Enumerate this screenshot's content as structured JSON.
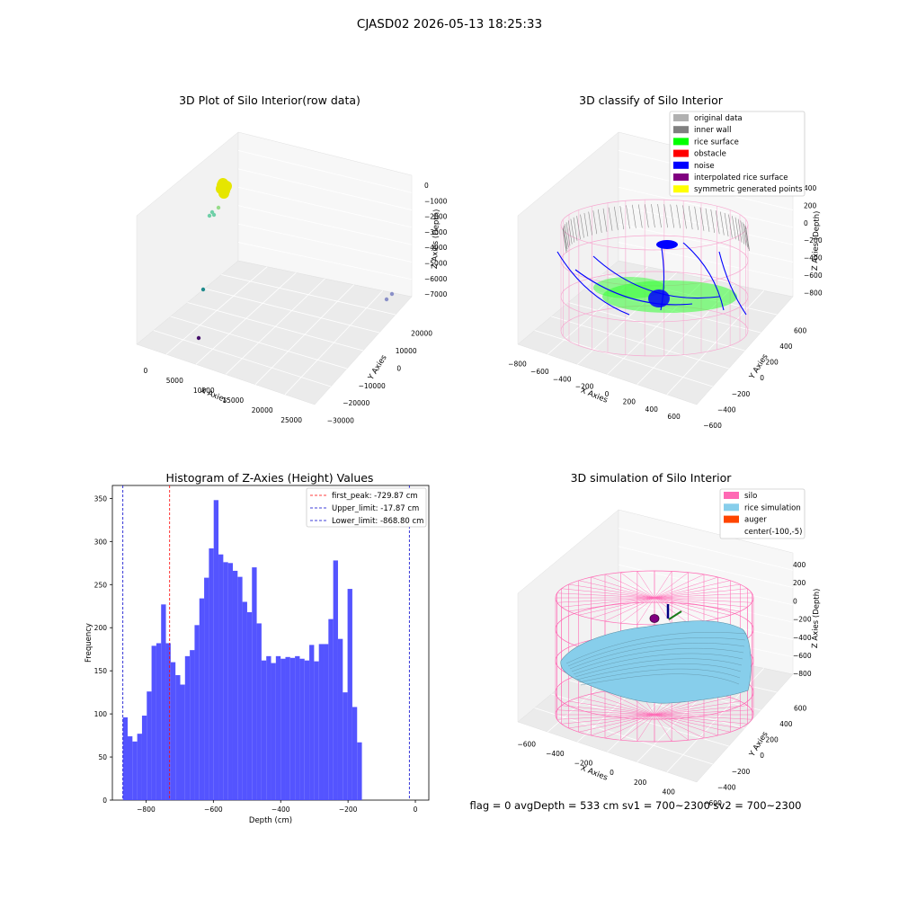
{
  "figure": {
    "suptitle": "CJASD02 2026-05-13 18:25:33",
    "footer": "flag = 0     avgDepth = 533 cm  sv1 = 700~2300  sv2 = 700~2300"
  },
  "panels": {
    "raw": {
      "title": "3D Plot of Silo Interior(row data)",
      "xlabel": "X Axies",
      "ylabel": "Y Axies",
      "zlabel": "Z Axies (Depth)",
      "xticks": [
        "0",
        "5000",
        "10000",
        "15000",
        "20000",
        "25000"
      ],
      "yticks": [
        "20000",
        "10000",
        "0",
        "−10000",
        "−20000",
        "−30000"
      ],
      "zticks": [
        "0",
        "−1000",
        "−2000",
        "−3000",
        "−4000",
        "−5000",
        "−6000",
        "−7000"
      ]
    },
    "classify": {
      "title": "3D classify of Silo Interior",
      "xlabel": "X Axies",
      "ylabel": "Y Axies",
      "zlabel": "Z Axies (Depth)",
      "xticks": [
        "−800",
        "−600",
        "−400",
        "−200",
        "0",
        "200",
        "400",
        "600"
      ],
      "yticks": [
        "600",
        "400",
        "200",
        "0",
        "−200",
        "−400",
        "−600"
      ],
      "zticks": [
        "400",
        "200",
        "0",
        "−200",
        "−400",
        "−600",
        "−800"
      ],
      "legend": [
        {
          "label": "original data",
          "color": "#b0b0b0"
        },
        {
          "label": "inner wall",
          "color": "#808080"
        },
        {
          "label": "rice surface",
          "color": "#00ff00"
        },
        {
          "label": "obstacle",
          "color": "#ff0000"
        },
        {
          "label": "noise",
          "color": "#0000ff"
        },
        {
          "label": "interpolated rice surface",
          "color": "#800080"
        },
        {
          "label": "symmetric generated points",
          "color": "#ffff00"
        }
      ]
    },
    "histogram": {
      "title": "Histogram of Z-Axies (Height) Values",
      "xlabel": "Depth (cm)",
      "ylabel": "Frequency"
    },
    "simulation": {
      "title": "3D simulation of Silo Interior",
      "xlabel": "X Axies",
      "ylabel": "Y Axies",
      "zlabel": "Z Axies (Depth)",
      "xticks": [
        "−600",
        "−400",
        "−200",
        "0",
        "200",
        "400"
      ],
      "yticks": [
        "600",
        "400",
        "200",
        "0",
        "−200",
        "−400",
        "−600"
      ],
      "zticks": [
        "400",
        "200",
        "0",
        "−200",
        "−400",
        "−600",
        "−800"
      ],
      "legend": [
        {
          "label": "silo",
          "color": "#ff69b4"
        },
        {
          "label": "rice simulation",
          "color": "#87ceeb"
        },
        {
          "label": "auger",
          "color": "#ff4500"
        },
        {
          "label": "center(-100,-5)",
          "color": null
        }
      ]
    }
  },
  "colors": {
    "bar": "#4b4bff",
    "first_peak": "#ff0000",
    "limits": "#0000cd",
    "silo": "#ff69b4",
    "rice": "#87ceeb"
  },
  "chart_data": {
    "type": "bar",
    "title": "Histogram of Z-Axies (Height) Values",
    "xlabel": "Depth (cm)",
    "ylabel": "Frequency",
    "xlim": [
      -900,
      40
    ],
    "ylim": [
      0,
      365
    ],
    "xticks": [
      -800,
      -600,
      -400,
      -200,
      0
    ],
    "yticks": [
      0,
      50,
      100,
      150,
      200,
      250,
      300,
      350
    ],
    "bin_width": 14.2,
    "bin_start": -868.8,
    "values": [
      96,
      74,
      68,
      77,
      98,
      126,
      179,
      182,
      227,
      182,
      160,
      145,
      134,
      167,
      174,
      203,
      234,
      258,
      292,
      348,
      285,
      276,
      275,
      266,
      259,
      230,
      218,
      270,
      205,
      162,
      167,
      159,
      167,
      164,
      166,
      165,
      167,
      164,
      162,
      180,
      161,
      181,
      181,
      210,
      278,
      187,
      125,
      245,
      108,
      67
    ],
    "lines": [
      {
        "name": "first_peak: -729.87 cm",
        "x": -729.87,
        "color": "#ff0000"
      },
      {
        "name": "Upper_limit: -17.87 cm",
        "x": -17.87,
        "color": "#0000cd"
      },
      {
        "name": "Lower_limit: -868.80 cm",
        "x": -868.8,
        "color": "#0000cd"
      }
    ]
  }
}
